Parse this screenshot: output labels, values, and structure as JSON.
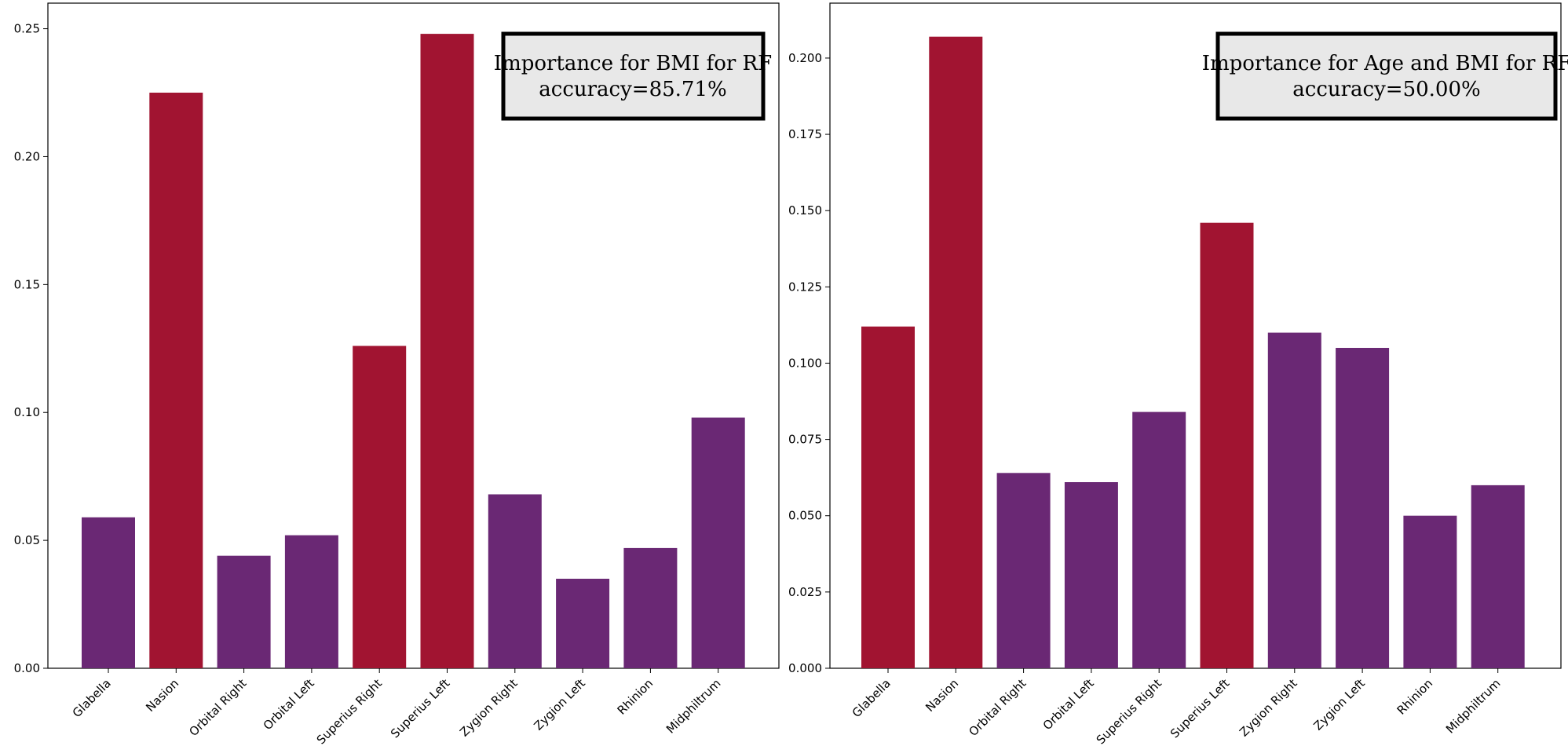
{
  "colors": {
    "highlight": "#a11431",
    "normal": "#6a2874",
    "box_fill": "#e8e8e8",
    "box_border": "#000000"
  },
  "chart_data": [
    {
      "type": "bar",
      "title_line1": "Importance for BMI for RF",
      "title_line2": "accuracy=85.71%",
      "legend_box_position": "top-right",
      "categories": [
        "Glabella",
        "Nasion",
        "Orbital Right",
        "Orbital Left",
        "Superius Right",
        "Superius Left",
        "Zygion Right",
        "Zygion Left",
        "Rhinion",
        "Midphiltrum"
      ],
      "values": [
        0.059,
        0.225,
        0.044,
        0.052,
        0.126,
        0.248,
        0.068,
        0.035,
        0.047,
        0.098
      ],
      "highlighted": [
        false,
        true,
        false,
        false,
        true,
        true,
        false,
        false,
        false,
        false
      ],
      "ylim": [
        0,
        0.26
      ],
      "yticks": [
        "0.00",
        "0.05",
        "0.10",
        "0.15",
        "0.20",
        "0.25"
      ],
      "ytick_values": [
        0,
        0.05,
        0.1,
        0.15,
        0.2,
        0.25
      ],
      "grid": false
    },
    {
      "type": "bar",
      "title_line1": "Importance for Age and BMI for RF",
      "title_line2": "accuracy=50.00%",
      "legend_box_position": "top-right",
      "categories": [
        "Glabella",
        "Nasion",
        "Orbital Right",
        "Orbital Left",
        "Superius Right",
        "Superius Left",
        "Zygion Right",
        "Zygion Left",
        "Rhinion",
        "Midphiltrum"
      ],
      "values": [
        0.112,
        0.207,
        0.064,
        0.061,
        0.084,
        0.146,
        0.11,
        0.105,
        0.05,
        0.06
      ],
      "highlighted": [
        true,
        true,
        false,
        false,
        false,
        true,
        false,
        false,
        false,
        false
      ],
      "ylim": [
        0,
        0.218
      ],
      "yticks": [
        "0.000",
        "0.025",
        "0.050",
        "0.075",
        "0.100",
        "0.125",
        "0.150",
        "0.175",
        "0.200"
      ],
      "ytick_values": [
        0,
        0.025,
        0.05,
        0.075,
        0.1,
        0.125,
        0.15,
        0.175,
        0.2
      ],
      "grid": false
    }
  ]
}
